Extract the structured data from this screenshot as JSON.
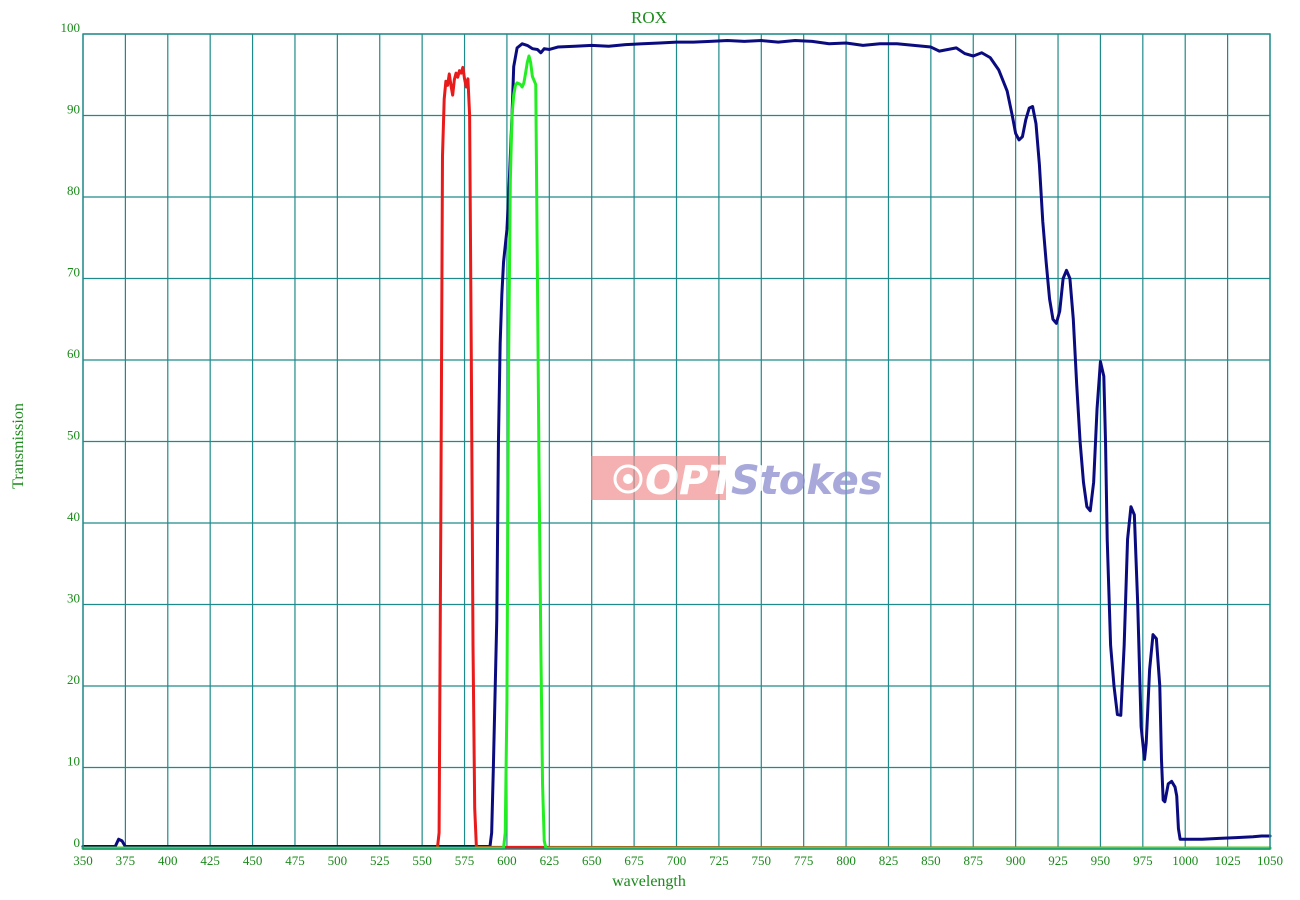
{
  "chart_data": {
    "type": "line",
    "title": "ROX",
    "xlabel": "wavelength",
    "ylabel": "Transmission",
    "xlim": [
      350,
      1050
    ],
    "ylim": [
      0,
      100
    ],
    "x_ticks": [
      350,
      375,
      400,
      425,
      450,
      475,
      500,
      525,
      550,
      575,
      600,
      625,
      650,
      675,
      700,
      725,
      750,
      775,
      800,
      825,
      850,
      875,
      900,
      925,
      950,
      975,
      1000,
      1025,
      1050
    ],
    "y_ticks": [
      0,
      10,
      20,
      30,
      40,
      50,
      60,
      70,
      80,
      90,
      100
    ],
    "grid": true,
    "series": [
      {
        "color": "#0b0b80",
        "points": [
          [
            350,
            0.3
          ],
          [
            369,
            0.3
          ],
          [
            371,
            1.2
          ],
          [
            373,
            1.0
          ],
          [
            375,
            0.3
          ],
          [
            590,
            0.3
          ],
          [
            591,
            2
          ],
          [
            592,
            10
          ],
          [
            594,
            28
          ],
          [
            595,
            50
          ],
          [
            596,
            62
          ],
          [
            597,
            68
          ],
          [
            598,
            72
          ],
          [
            600,
            76
          ],
          [
            601,
            80
          ],
          [
            603,
            90
          ],
          [
            604,
            96
          ],
          [
            606,
            98.3
          ],
          [
            609,
            98.8
          ],
          [
            612,
            98.6
          ],
          [
            615,
            98.2
          ],
          [
            618,
            98.1
          ],
          [
            620,
            97.7
          ],
          [
            622,
            98.2
          ],
          [
            625,
            98.1
          ],
          [
            630,
            98.4
          ],
          [
            640,
            98.5
          ],
          [
            650,
            98.6
          ],
          [
            660,
            98.5
          ],
          [
            670,
            98.7
          ],
          [
            680,
            98.8
          ],
          [
            690,
            98.9
          ],
          [
            700,
            99.0
          ],
          [
            710,
            99.0
          ],
          [
            720,
            99.1
          ],
          [
            730,
            99.2
          ],
          [
            740,
            99.1
          ],
          [
            750,
            99.2
          ],
          [
            760,
            99.0
          ],
          [
            770,
            99.2
          ],
          [
            780,
            99.1
          ],
          [
            790,
            98.8
          ],
          [
            800,
            98.9
          ],
          [
            810,
            98.6
          ],
          [
            820,
            98.8
          ],
          [
            830,
            98.8
          ],
          [
            840,
            98.6
          ],
          [
            850,
            98.4
          ],
          [
            855,
            97.9
          ],
          [
            860,
            98.1
          ],
          [
            865,
            98.3
          ],
          [
            870,
            97.6
          ],
          [
            875,
            97.3
          ],
          [
            880,
            97.7
          ],
          [
            885,
            97.1
          ],
          [
            890,
            95.6
          ],
          [
            895,
            93
          ],
          [
            898,
            90
          ],
          [
            900,
            87.8
          ],
          [
            902,
            87
          ],
          [
            904,
            87.4
          ],
          [
            906,
            89.5
          ],
          [
            908,
            90.9
          ],
          [
            910,
            91.1
          ],
          [
            912,
            89
          ],
          [
            914,
            84
          ],
          [
            916,
            77
          ],
          [
            918,
            72
          ],
          [
            920,
            67.5
          ],
          [
            922,
            65
          ],
          [
            924,
            64.5
          ],
          [
            926,
            66
          ],
          [
            928,
            70
          ],
          [
            930,
            71
          ],
          [
            932,
            70
          ],
          [
            934,
            65
          ],
          [
            936,
            57
          ],
          [
            938,
            50
          ],
          [
            940,
            45
          ],
          [
            942,
            42
          ],
          [
            944,
            41.5
          ],
          [
            946,
            45
          ],
          [
            948,
            54
          ],
          [
            950,
            59.8
          ],
          [
            952,
            58
          ],
          [
            953,
            50
          ],
          [
            954,
            38
          ],
          [
            956,
            25
          ],
          [
            958,
            20
          ],
          [
            960,
            16.5
          ],
          [
            962,
            16.4
          ],
          [
            964,
            25
          ],
          [
            966,
            38
          ],
          [
            968,
            42
          ],
          [
            970,
            41
          ],
          [
            972,
            30
          ],
          [
            974,
            15
          ],
          [
            976,
            11
          ],
          [
            977,
            13
          ],
          [
            979,
            22
          ],
          [
            981,
            26.3
          ],
          [
            983,
            25.8
          ],
          [
            985,
            20
          ],
          [
            986,
            11
          ],
          [
            987,
            6
          ],
          [
            988,
            5.8
          ],
          [
            990,
            8
          ],
          [
            992,
            8.3
          ],
          [
            994,
            7.6
          ],
          [
            995,
            6.5
          ],
          [
            996,
            2.5
          ],
          [
            997,
            1.2
          ],
          [
            1000,
            1.2
          ],
          [
            1010,
            1.2
          ],
          [
            1020,
            1.3
          ],
          [
            1030,
            1.4
          ],
          [
            1040,
            1.5
          ],
          [
            1045,
            1.6
          ],
          [
            1050,
            1.6
          ]
        ]
      },
      {
        "color": "#e81a1a",
        "points": [
          [
            350,
            0.1
          ],
          [
            559,
            0.1
          ],
          [
            560,
            2
          ],
          [
            561,
            40
          ],
          [
            562,
            85
          ],
          [
            563,
            92
          ],
          [
            564,
            94.2
          ],
          [
            565,
            93.7
          ],
          [
            566,
            95.1
          ],
          [
            567,
            93.7
          ],
          [
            568,
            92.5
          ],
          [
            569,
            94.4
          ],
          [
            570,
            95.2
          ],
          [
            571,
            94.7
          ],
          [
            572,
            95.5
          ],
          [
            573,
            95.2
          ],
          [
            574,
            95.9
          ],
          [
            575,
            94.5
          ],
          [
            576,
            93.5
          ],
          [
            577,
            94.5
          ],
          [
            578,
            90
          ],
          [
            579,
            60
          ],
          [
            580,
            25
          ],
          [
            581,
            5
          ],
          [
            582,
            0.2
          ],
          [
            1050,
            0.1
          ]
        ]
      },
      {
        "color": "#22ee22",
        "points": [
          [
            350,
            0.1
          ],
          [
            570,
            0.1
          ],
          [
            598,
            0.1
          ],
          [
            599,
            2
          ],
          [
            600,
            18
          ],
          [
            601,
            60
          ],
          [
            602,
            82
          ],
          [
            603,
            90
          ],
          [
            604,
            92.5
          ],
          [
            605,
            93.7
          ],
          [
            606,
            94
          ],
          [
            608,
            93.8
          ],
          [
            609,
            93.5
          ],
          [
            610,
            94
          ],
          [
            611,
            95.2
          ],
          [
            612,
            96.5
          ],
          [
            613,
            97.3
          ],
          [
            614,
            96.5
          ],
          [
            615,
            94.8
          ],
          [
            616,
            94.3
          ],
          [
            617,
            93.8
          ],
          [
            618,
            70
          ],
          [
            619,
            45
          ],
          [
            620,
            25
          ],
          [
            621,
            8
          ],
          [
            622,
            1
          ],
          [
            623,
            0.1
          ],
          [
            1050,
            0.1
          ]
        ]
      }
    ]
  },
  "watermark": {
    "left": "OPTO",
    "right": "Stokes"
  }
}
